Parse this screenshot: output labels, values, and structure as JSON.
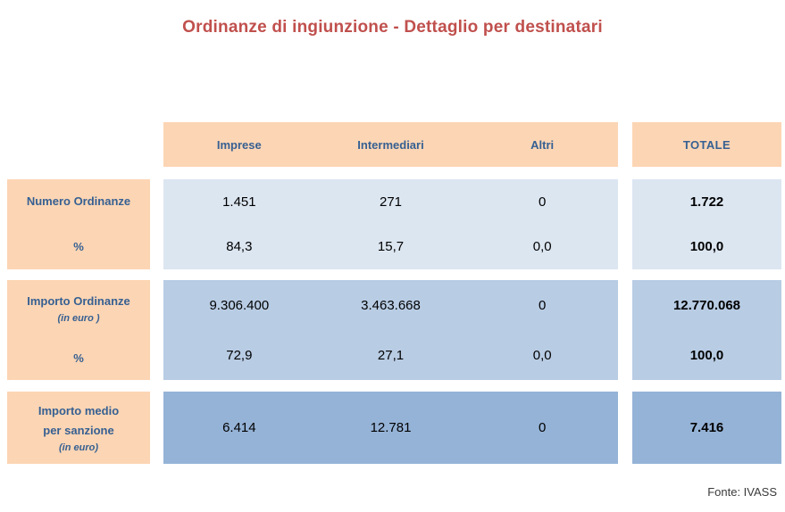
{
  "title": "Ordinanze di ingiunzione - Dettaglio per destinatari",
  "source": "Fonte: IVASS",
  "colors": {
    "title_color": "#C0504D",
    "header_bg": "#FCD5B4",
    "header_text": "#366092",
    "row1_bg": "#DCE6F1",
    "row2_bg": "#B8CCE4",
    "row3_bg": "#95B3D7",
    "value_text": "#000000",
    "source_text": "#3B3B3B"
  },
  "table": {
    "columns": [
      "Imprese",
      "Intermediari",
      "Altri"
    ],
    "total_label": "TOTALE",
    "groups": [
      {
        "rows": [
          {
            "label": "Numero Ordinanze",
            "values": [
              "1.451",
              "271",
              "0"
            ],
            "total": "1.722"
          },
          {
            "label": "%",
            "values": [
              "84,3",
              "15,7",
              "0,0"
            ],
            "total": "100,0"
          }
        ]
      },
      {
        "rows": [
          {
            "label": "Importo Ordinanze",
            "sublabel": "(in euro )",
            "values": [
              "9.306.400",
              "3.463.668",
              "0"
            ],
            "total": "12.770.068"
          },
          {
            "label": "%",
            "values": [
              "72,9",
              "27,1",
              "0,0"
            ],
            "total": "100,0"
          }
        ]
      },
      {
        "rows": [
          {
            "label": "Importo medio",
            "label2": "per sanzione",
            "sublabel": "(in euro)",
            "values": [
              "6.414",
              "12.781",
              "0"
            ],
            "total": "7.416"
          }
        ]
      }
    ]
  },
  "chart_data": {
    "type": "table",
    "title": "Ordinanze di ingiunzione - Dettaglio per destinatari",
    "columns": [
      "Imprese",
      "Intermediari",
      "Altri",
      "TOTALE"
    ],
    "rows": [
      {
        "label": "Numero Ordinanze",
        "values": [
          1451,
          271,
          0,
          1722
        ]
      },
      {
        "label": "Numero Ordinanze %",
        "values": [
          84.3,
          15.7,
          0.0,
          100.0
        ]
      },
      {
        "label": "Importo Ordinanze (in euro)",
        "values": [
          9306400,
          3463668,
          0,
          12770068
        ]
      },
      {
        "label": "Importo Ordinanze %",
        "values": [
          72.9,
          27.1,
          0.0,
          100.0
        ]
      },
      {
        "label": "Importo medio per sanzione (in euro)",
        "values": [
          6414,
          12781,
          0,
          7416
        ]
      }
    ],
    "source": "Fonte: IVASS"
  }
}
